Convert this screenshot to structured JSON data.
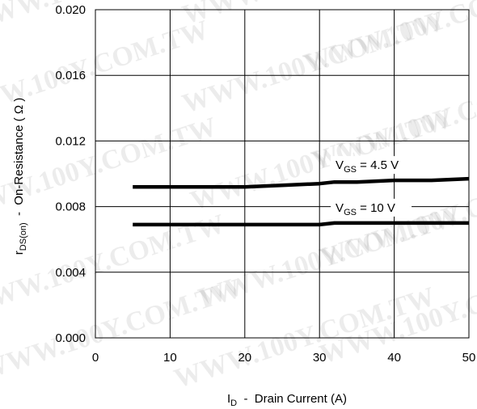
{
  "watermark": "WWW.100Y.COM.TW",
  "chart_data": {
    "type": "line",
    "x": [
      5,
      10,
      15,
      20,
      25,
      30,
      32,
      35,
      40,
      45,
      50
    ],
    "series": [
      {
        "name": "VGS = 4.5 V",
        "label_main": "V",
        "label_sub": "GS",
        "label_rest": " = 4.5 V",
        "values": [
          0.0092,
          0.0092,
          0.0092,
          0.0092,
          0.0093,
          0.0094,
          0.0095,
          0.0095,
          0.0096,
          0.0096,
          0.0097
        ]
      },
      {
        "name": "VGS = 10 V",
        "label_main": "V",
        "label_sub": "GS",
        "label_rest": " = 10 V",
        "values": [
          0.0069,
          0.0069,
          0.0069,
          0.0069,
          0.0069,
          0.0069,
          0.007,
          0.007,
          0.007,
          0.007,
          0.007
        ]
      }
    ],
    "xlim": [
      0,
      50
    ],
    "ylim": [
      0.0,
      0.02
    ],
    "xticks": [
      "0",
      "10",
      "20",
      "30",
      "40",
      "50"
    ],
    "yticks": [
      "0.000",
      "0.004",
      "0.008",
      "0.012",
      "0.016",
      "0.020"
    ],
    "xlabel": {
      "main": "I",
      "sub": "D",
      "rest": "  -  Drain Current (A)"
    },
    "ylabel": {
      "main": "r",
      "sub": "DS(on)",
      "rest": "  -  On-Resistance ( Ω )"
    },
    "grid": true,
    "line_color": "#000000"
  }
}
